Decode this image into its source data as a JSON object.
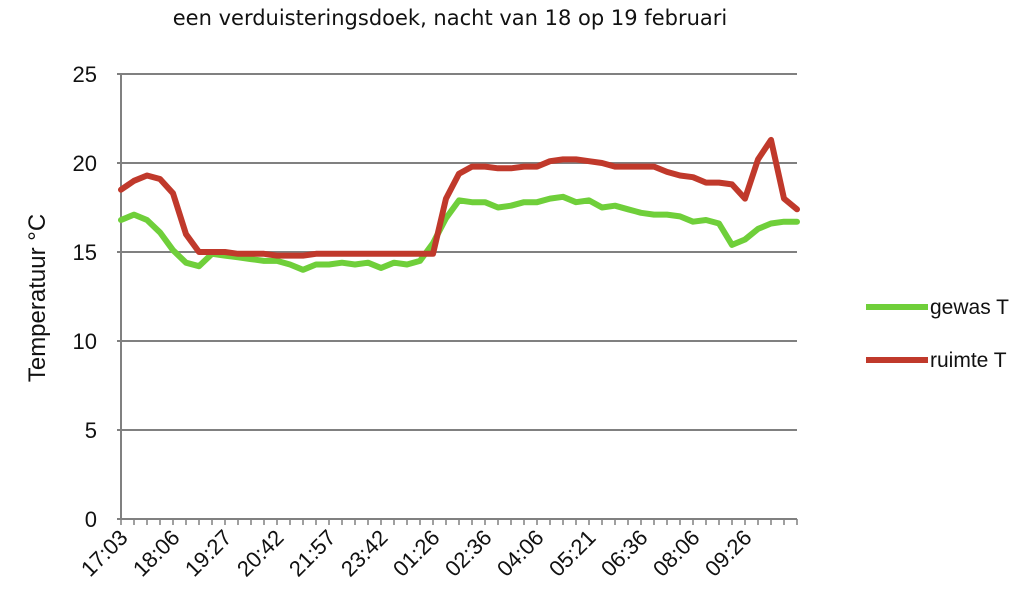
{
  "chart_data": {
    "type": "line",
    "title": "een verduisteringsdoek, nacht van 18 op 19 februari",
    "xlabel": "",
    "ylabel": "Temperatuur °C",
    "ylim": [
      0,
      25
    ],
    "yticks": [
      0,
      5,
      10,
      15,
      20,
      25
    ],
    "grid": true,
    "legend_position": "right",
    "xtick_labels": [
      "17:03",
      "18:06",
      "19:27",
      "20:42",
      "21:57",
      "23:42",
      "01:26",
      "02:36",
      "04:06",
      "05:21",
      "06:36",
      "08:06",
      "09:26"
    ],
    "series": [
      {
        "name": "gewas T",
        "color": "#6fcf3a",
        "values": [
          16.8,
          17.1,
          16.8,
          16.1,
          15.1,
          14.4,
          14.2,
          14.9,
          14.8,
          14.7,
          14.6,
          14.5,
          14.5,
          14.3,
          14.0,
          14.3,
          14.3,
          14.4,
          14.3,
          14.4,
          14.1,
          14.4,
          14.3,
          14.5,
          15.5,
          16.9,
          17.9,
          17.8,
          17.8,
          17.5,
          17.6,
          17.8,
          17.8,
          18.0,
          18.1,
          17.8,
          17.9,
          17.5,
          17.6,
          17.4,
          17.2,
          17.1,
          17.1,
          17.0,
          16.7,
          16.8,
          16.6,
          15.4,
          15.7,
          16.3,
          16.6,
          16.7,
          16.7
        ]
      },
      {
        "name": "ruimte T",
        "color": "#c0392b",
        "values": [
          18.5,
          19.0,
          19.3,
          19.1,
          18.3,
          16.0,
          15.0,
          15.0,
          15.0,
          14.9,
          14.9,
          14.9,
          14.8,
          14.8,
          14.8,
          14.9,
          14.9,
          14.9,
          14.9,
          14.9,
          14.9,
          14.9,
          14.9,
          14.9,
          14.9,
          18.0,
          19.4,
          19.8,
          19.8,
          19.7,
          19.7,
          19.8,
          19.8,
          20.1,
          20.2,
          20.2,
          20.1,
          20.0,
          19.8,
          19.8,
          19.8,
          19.8,
          19.5,
          19.3,
          19.2,
          18.9,
          18.9,
          18.8,
          18.0,
          20.2,
          21.3,
          18.0,
          17.4
        ]
      }
    ]
  }
}
